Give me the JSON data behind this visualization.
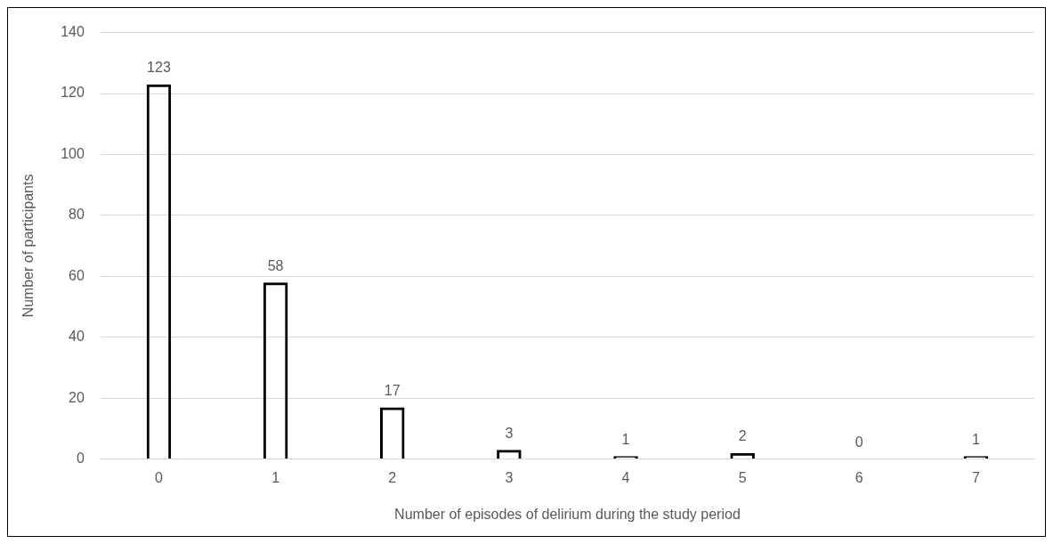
{
  "chart_data": {
    "type": "bar",
    "xlabel": "Number of episodes of delirium during the study period",
    "ylabel": "Number of participants",
    "categories": [
      "0",
      "1",
      "2",
      "3",
      "4",
      "5",
      "6",
      "7"
    ],
    "values": [
      123,
      58,
      17,
      3,
      1,
      2,
      0,
      1
    ],
    "color": "#000000",
    "ylim": [
      0,
      140
    ],
    "yticks": [
      0,
      20,
      40,
      60,
      80,
      100,
      120,
      140
    ],
    "grid": "y",
    "data_labels": true
  }
}
